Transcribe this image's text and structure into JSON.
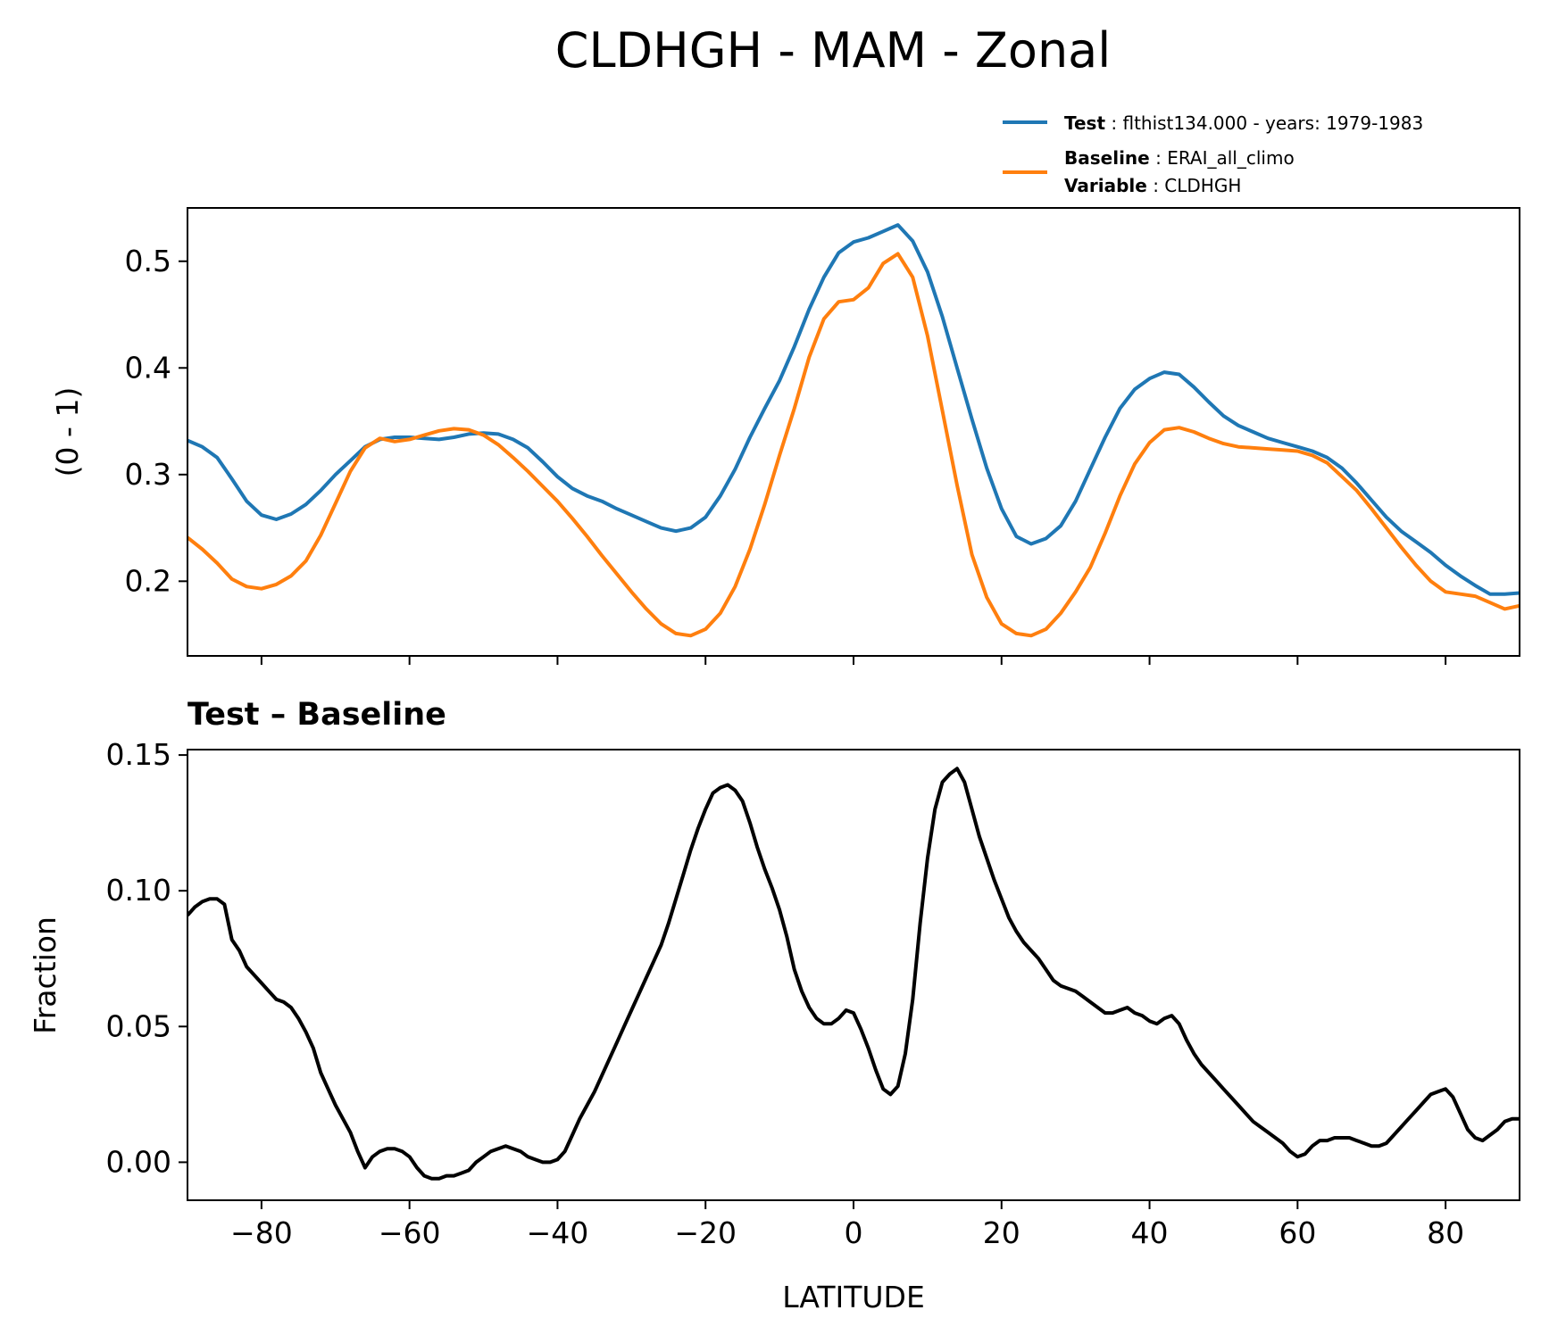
{
  "figure": {
    "title": "CLDHGH - MAM - Zonal",
    "colors": {
      "test": "#1f77b4",
      "baseline": "#ff7f0e",
      "diff": "#000000"
    }
  },
  "legend": {
    "test_key": "Test",
    "test_value": "flthist134.000 - years: 1979-1983",
    "baseline_key": "Baseline",
    "baseline_value": "ERAI_all_climo",
    "variable_key": "Variable",
    "variable_value": "CLDHGH"
  },
  "chart_data": [
    {
      "type": "line",
      "title": "",
      "xlabel": "",
      "ylabel": "(0 - 1)",
      "xlim": [
        -90,
        90
      ],
      "ylim": [
        0.13,
        0.55
      ],
      "yticks": [
        0.2,
        0.3,
        0.4,
        0.5
      ],
      "ytick_labels": [
        "0.2",
        "0.3",
        "0.4",
        "0.5"
      ],
      "xticks": [
        -80,
        -60,
        -40,
        -20,
        0,
        20,
        40,
        60,
        80
      ],
      "series": [
        {
          "name": "Test",
          "x": [
            -90,
            -88,
            -86,
            -84,
            -82,
            -80,
            -78,
            -76,
            -74,
            -72,
            -70,
            -68,
            -66,
            -64,
            -62,
            -60,
            -58,
            -56,
            -54,
            -52,
            -50,
            -48,
            -46,
            -44,
            -42,
            -40,
            -38,
            -36,
            -34,
            -32,
            -30,
            -28,
            -26,
            -24,
            -22,
            -20,
            -18,
            -16,
            -14,
            -12,
            -10,
            -8,
            -6,
            -4,
            -2,
            0,
            2,
            4,
            6,
            8,
            10,
            12,
            14,
            16,
            18,
            20,
            22,
            24,
            26,
            28,
            30,
            32,
            34,
            36,
            38,
            40,
            42,
            44,
            46,
            48,
            50,
            52,
            54,
            56,
            58,
            60,
            62,
            64,
            66,
            68,
            70,
            72,
            74,
            76,
            78,
            80,
            82,
            84,
            86,
            88,
            90
          ],
          "values": [
            0.332,
            0.326,
            0.316,
            0.296,
            0.275,
            0.262,
            0.258,
            0.263,
            0.272,
            0.285,
            0.3,
            0.313,
            0.326,
            0.333,
            0.335,
            0.335,
            0.334,
            0.333,
            0.335,
            0.338,
            0.339,
            0.338,
            0.333,
            0.325,
            0.312,
            0.298,
            0.287,
            0.28,
            0.275,
            0.268,
            0.262,
            0.256,
            0.25,
            0.247,
            0.25,
            0.26,
            0.28,
            0.305,
            0.335,
            0.362,
            0.388,
            0.42,
            0.455,
            0.485,
            0.508,
            0.518,
            0.522,
            0.528,
            0.534,
            0.519,
            0.49,
            0.448,
            0.4,
            0.352,
            0.306,
            0.268,
            0.242,
            0.235,
            0.24,
            0.252,
            0.275,
            0.305,
            0.335,
            0.362,
            0.38,
            0.39,
            0.396,
            0.394,
            0.382,
            0.368,
            0.355,
            0.346,
            0.34,
            0.334,
            0.33,
            0.326,
            0.322,
            0.316,
            0.306,
            0.292,
            0.276,
            0.26,
            0.247,
            0.237,
            0.227,
            0.215,
            0.205,
            0.196,
            0.188,
            0.188,
            0.189
          ]
        },
        {
          "name": "Baseline",
          "x": [
            -90,
            -88,
            -86,
            -84,
            -82,
            -80,
            -78,
            -76,
            -74,
            -72,
            -70,
            -68,
            -66,
            -64,
            -62,
            -60,
            -58,
            -56,
            -54,
            -52,
            -50,
            -48,
            -46,
            -44,
            -42,
            -40,
            -38,
            -36,
            -34,
            -32,
            -30,
            -28,
            -26,
            -24,
            -22,
            -20,
            -18,
            -16,
            -14,
            -12,
            -10,
            -8,
            -6,
            -4,
            -2,
            0,
            2,
            4,
            6,
            8,
            10,
            12,
            14,
            16,
            18,
            20,
            22,
            24,
            26,
            28,
            30,
            32,
            34,
            36,
            38,
            40,
            42,
            44,
            46,
            48,
            50,
            52,
            54,
            56,
            58,
            60,
            62,
            64,
            66,
            68,
            70,
            72,
            74,
            76,
            78,
            80,
            82,
            84,
            86,
            88,
            90
          ],
          "values": [
            0.241,
            0.23,
            0.217,
            0.202,
            0.195,
            0.193,
            0.197,
            0.205,
            0.219,
            0.243,
            0.273,
            0.303,
            0.325,
            0.334,
            0.331,
            0.333,
            0.337,
            0.341,
            0.343,
            0.342,
            0.337,
            0.328,
            0.316,
            0.303,
            0.289,
            0.275,
            0.259,
            0.242,
            0.224,
            0.207,
            0.19,
            0.174,
            0.16,
            0.151,
            0.149,
            0.155,
            0.17,
            0.195,
            0.23,
            0.272,
            0.318,
            0.362,
            0.41,
            0.446,
            0.462,
            0.464,
            0.475,
            0.498,
            0.507,
            0.485,
            0.43,
            0.36,
            0.29,
            0.225,
            0.185,
            0.16,
            0.151,
            0.149,
            0.155,
            0.17,
            0.19,
            0.213,
            0.245,
            0.28,
            0.31,
            0.33,
            0.342,
            0.344,
            0.34,
            0.334,
            0.329,
            0.326,
            0.325,
            0.324,
            0.323,
            0.322,
            0.318,
            0.311,
            0.298,
            0.285,
            0.268,
            0.25,
            0.232,
            0.215,
            0.2,
            0.19,
            0.188,
            0.186,
            0.18,
            0.174,
            0.177
          ]
        }
      ]
    },
    {
      "type": "line",
      "title": "Test – Baseline",
      "xlabel": "LATITUDE",
      "ylabel": "Fraction",
      "xlim": [
        -90,
        90
      ],
      "ylim": [
        -0.014,
        0.152
      ],
      "yticks": [
        0.0,
        0.05,
        0.1,
        0.15
      ],
      "ytick_labels": [
        "0.00",
        "0.05",
        "0.10",
        "0.15"
      ],
      "xticks": [
        -80,
        -60,
        -40,
        -20,
        0,
        20,
        40,
        60,
        80
      ],
      "xtick_labels": [
        "−80",
        "−60",
        "−40",
        "−20",
        "0",
        "20",
        "40",
        "60",
        "80"
      ],
      "series": [
        {
          "name": "Test – Baseline",
          "x": [
            -90,
            -89,
            -88,
            -87,
            -86,
            -85,
            -84,
            -83,
            -82,
            -81,
            -80,
            -79,
            -78,
            -77,
            -76,
            -75,
            -74,
            -73,
            -72,
            -71,
            -70,
            -69,
            -68,
            -67,
            -66,
            -65,
            -64,
            -63,
            -62,
            -61,
            -60,
            -59,
            -58,
            -57,
            -56,
            -55,
            -54,
            -53,
            -52,
            -51,
            -50,
            -49,
            -48,
            -47,
            -46,
            -45,
            -44,
            -43,
            -42,
            -41,
            -40,
            -39,
            -38,
            -37,
            -36,
            -35,
            -34,
            -33,
            -32,
            -31,
            -30,
            -29,
            -28,
            -27,
            -26,
            -25,
            -24,
            -23,
            -22,
            -21,
            -20,
            -19,
            -18,
            -17,
            -16,
            -15,
            -14,
            -13,
            -12,
            -11,
            -10,
            -9,
            -8,
            -7,
            -6,
            -5,
            -4,
            -3,
            -2,
            -1,
            0,
            1,
            2,
            3,
            4,
            5,
            6,
            7,
            8,
            9,
            10,
            11,
            12,
            13,
            14,
            15,
            16,
            17,
            18,
            19,
            20,
            21,
            22,
            23,
            24,
            25,
            26,
            27,
            28,
            29,
            30,
            31,
            32,
            33,
            34,
            35,
            36,
            37,
            38,
            39,
            40,
            41,
            42,
            43,
            44,
            45,
            46,
            47,
            48,
            49,
            50,
            51,
            52,
            53,
            54,
            55,
            56,
            57,
            58,
            59,
            60,
            61,
            62,
            63,
            64,
            65,
            66,
            67,
            68,
            69,
            70,
            71,
            72,
            73,
            74,
            75,
            76,
            77,
            78,
            79,
            80,
            81,
            82,
            83,
            84,
            85,
            86,
            87,
            88,
            89,
            90
          ],
          "values": [
            0.091,
            0.094,
            0.096,
            0.097,
            0.097,
            0.095,
            0.082,
            0.078,
            0.072,
            0.069,
            0.066,
            0.063,
            0.06,
            0.059,
            0.057,
            0.053,
            0.048,
            0.042,
            0.033,
            0.027,
            0.021,
            0.016,
            0.011,
            0.004,
            -0.002,
            0.002,
            0.004,
            0.005,
            0.005,
            0.004,
            0.002,
            -0.002,
            -0.005,
            -0.006,
            -0.006,
            -0.005,
            -0.005,
            -0.004,
            -0.003,
            0.0,
            0.002,
            0.004,
            0.005,
            0.006,
            0.005,
            0.004,
            0.002,
            0.001,
            0.0,
            0.0,
            0.001,
            0.004,
            0.01,
            0.016,
            0.021,
            0.026,
            0.032,
            0.038,
            0.044,
            0.05,
            0.056,
            0.062,
            0.068,
            0.074,
            0.08,
            0.088,
            0.097,
            0.106,
            0.115,
            0.123,
            0.13,
            0.136,
            0.138,
            0.139,
            0.137,
            0.133,
            0.125,
            0.116,
            0.108,
            0.101,
            0.093,
            0.083,
            0.071,
            0.063,
            0.057,
            0.053,
            0.051,
            0.051,
            0.053,
            0.056,
            0.055,
            0.049,
            0.042,
            0.034,
            0.027,
            0.025,
            0.028,
            0.04,
            0.06,
            0.088,
            0.112,
            0.13,
            0.14,
            0.143,
            0.145,
            0.14,
            0.13,
            0.12,
            0.112,
            0.104,
            0.097,
            0.09,
            0.085,
            0.081,
            0.078,
            0.075,
            0.071,
            0.067,
            0.065,
            0.064,
            0.063,
            0.061,
            0.059,
            0.057,
            0.055,
            0.055,
            0.056,
            0.057,
            0.055,
            0.054,
            0.052,
            0.051,
            0.053,
            0.054,
            0.051,
            0.045,
            0.04,
            0.036,
            0.033,
            0.03,
            0.027,
            0.024,
            0.021,
            0.018,
            0.015,
            0.013,
            0.011,
            0.009,
            0.007,
            0.004,
            0.002,
            0.003,
            0.006,
            0.008,
            0.008,
            0.009,
            0.009,
            0.009,
            0.008,
            0.007,
            0.006,
            0.006,
            0.007,
            0.01,
            0.013,
            0.016,
            0.019,
            0.022,
            0.025,
            0.026,
            0.027,
            0.024,
            0.018,
            0.012,
            0.009,
            0.008,
            0.01,
            0.012,
            0.015,
            0.016,
            0.016
          ]
        }
      ]
    }
  ]
}
